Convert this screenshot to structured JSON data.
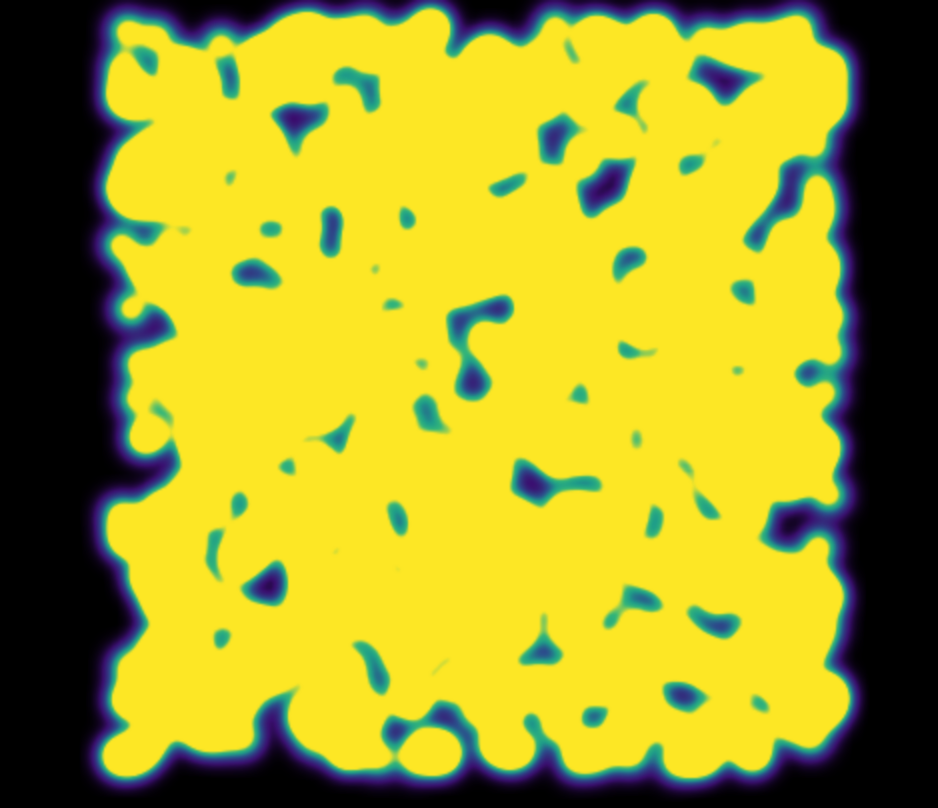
{
  "image": {
    "kind": "density heatmap (viridis-like colormap)",
    "background_color": "#000000",
    "colormap": [
      "#000000",
      "#3b0f70",
      "#2c4f8c",
      "#1f9e89",
      "#35b779",
      "#fde725"
    ],
    "text_labels": []
  }
}
